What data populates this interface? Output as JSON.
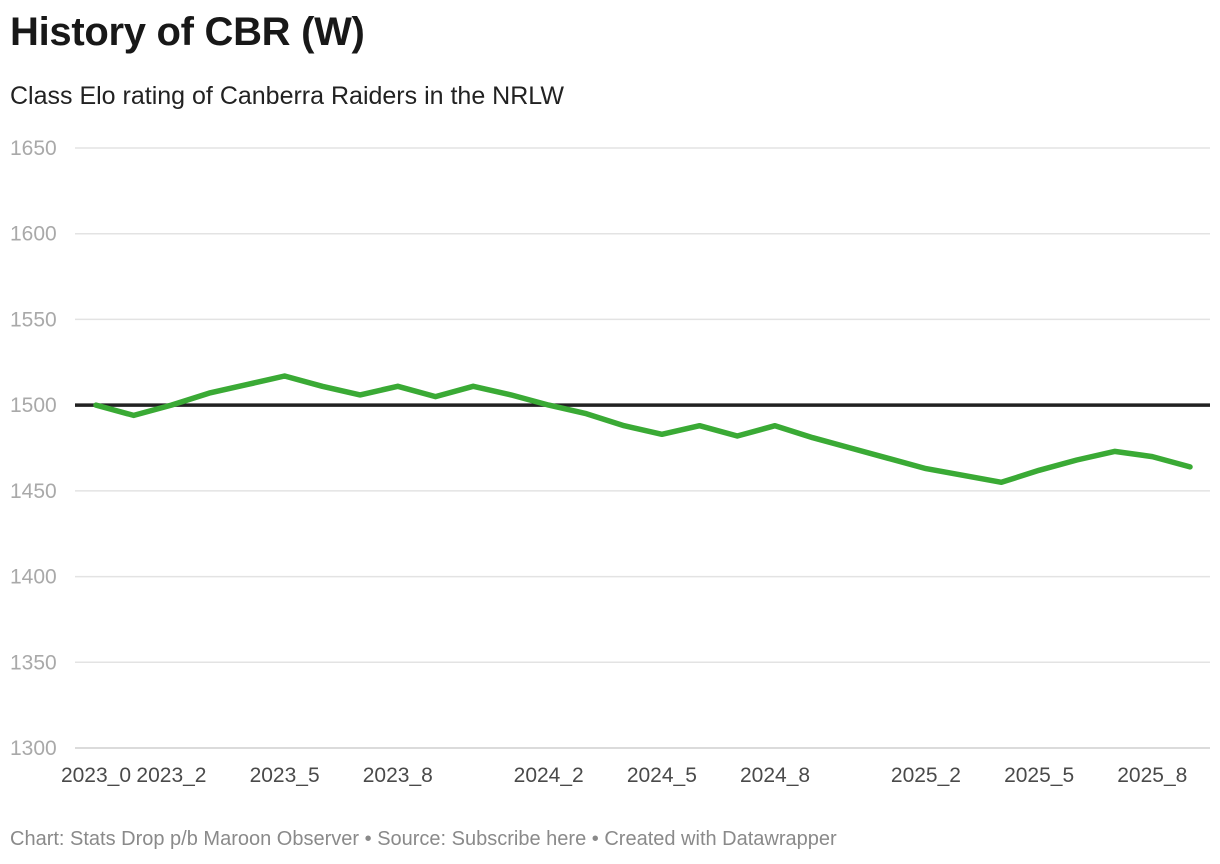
{
  "title": "History of CBR (W)",
  "subtitle": "Class Elo rating of Canberra Raiders in the NRLW",
  "footer": {
    "chart_credit": "Chart: Stats Drop p/b Maroon Observer",
    "separator": "•",
    "source": "Source: Subscribe here",
    "created": "Created with Datawrapper"
  },
  "colors": {
    "series": "#3aaa35",
    "reference": "#222222",
    "grid": "#e3e3e3"
  },
  "chart_data": {
    "type": "line",
    "title": "History of CBR (W)",
    "subtitle": "Class Elo rating of Canberra Raiders in the NRLW",
    "xlabel": "",
    "ylabel": "",
    "ylim": [
      1300,
      1650
    ],
    "yticks": [
      1650,
      1600,
      1550,
      1500,
      1450,
      1400,
      1350,
      1300
    ],
    "grid": true,
    "reference_line": 1500,
    "x_ticks": [
      "2023_0",
      "2023_2",
      "2023_5",
      "2023_8",
      "2024_2",
      "2024_5",
      "2024_8",
      "2025_2",
      "2025_5",
      "2025_8"
    ],
    "x_tick_indices": [
      0,
      2,
      5,
      8,
      12,
      15,
      18,
      22,
      25,
      28
    ],
    "series": [
      {
        "name": "CBR (W)",
        "values": [
          1500,
          1494,
          1500,
          1507,
          1512,
          1517,
          1511,
          1506,
          1511,
          1505,
          1511,
          1506,
          1500,
          1495,
          1488,
          1483,
          1488,
          1482,
          1488,
          1481,
          1475,
          1469,
          1463,
          1459,
          1455,
          1462,
          1468,
          1473,
          1470,
          1464
        ]
      }
    ]
  }
}
